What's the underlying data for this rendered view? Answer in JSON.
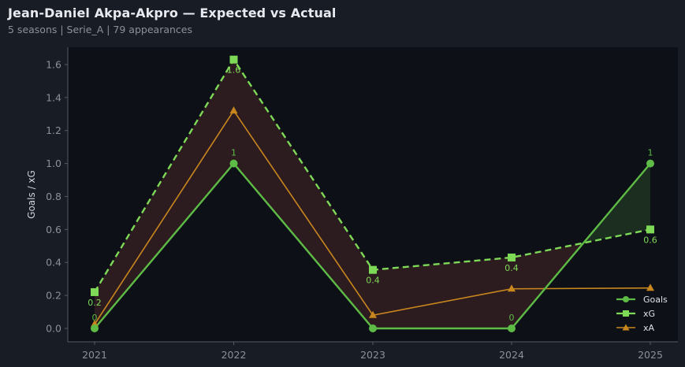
{
  "header": {
    "title": "Jean-Daniel Akpa-Akpro — Expected vs Actual",
    "subtitle": "5 seasons | Serie_A | 79 appearances"
  },
  "colors": {
    "background": "#181c24",
    "plot_background": "#0d1017",
    "goals": "#5dbb46",
    "xg": "#7ed957",
    "xa": "#c8861e",
    "underperform_fill": "#2f1d20",
    "overperform_fill": "#1c3020",
    "tick_text": "#8b909a"
  },
  "chart_data": {
    "type": "line",
    "title": "Jean-Daniel Akpa-Akpro — Expected vs Actual",
    "subtitle": "5 seasons | Serie_A | 79 appearances",
    "xlabel": "",
    "ylabel": "Goals / xG",
    "x": [
      "2021",
      "2022",
      "2023",
      "2024",
      "2025"
    ],
    "ylim": [
      -0.05,
      1.72
    ],
    "yticks": [
      "0.0",
      "0.2",
      "0.4",
      "0.6",
      "0.8",
      "1.0",
      "1.2",
      "1.4",
      "1.6"
    ],
    "grid": false,
    "legend_position": "lower right",
    "series": [
      {
        "name": "Goals",
        "marker": "circle",
        "style": "solid",
        "values": [
          0,
          1,
          0,
          0,
          1
        ],
        "labels": [
          "0",
          "1",
          "",
          "0",
          "1"
        ]
      },
      {
        "name": "xG",
        "marker": "square",
        "style": "dashed",
        "values": [
          0.22,
          1.63,
          0.355,
          0.43,
          0.6
        ],
        "labels": [
          "0.2",
          "1.6",
          "0.4",
          "0.4",
          "0.6"
        ]
      },
      {
        "name": "xA",
        "marker": "triangle",
        "style": "solid",
        "values": [
          0.025,
          1.32,
          0.08,
          0.24,
          0.245
        ]
      }
    ],
    "annotations": "Shaded area between Goals and xG: red where xG > Goals, green where Goals > xG"
  },
  "legend": {
    "items": [
      {
        "label": "Goals"
      },
      {
        "label": "xG"
      },
      {
        "label": "xA"
      }
    ]
  }
}
